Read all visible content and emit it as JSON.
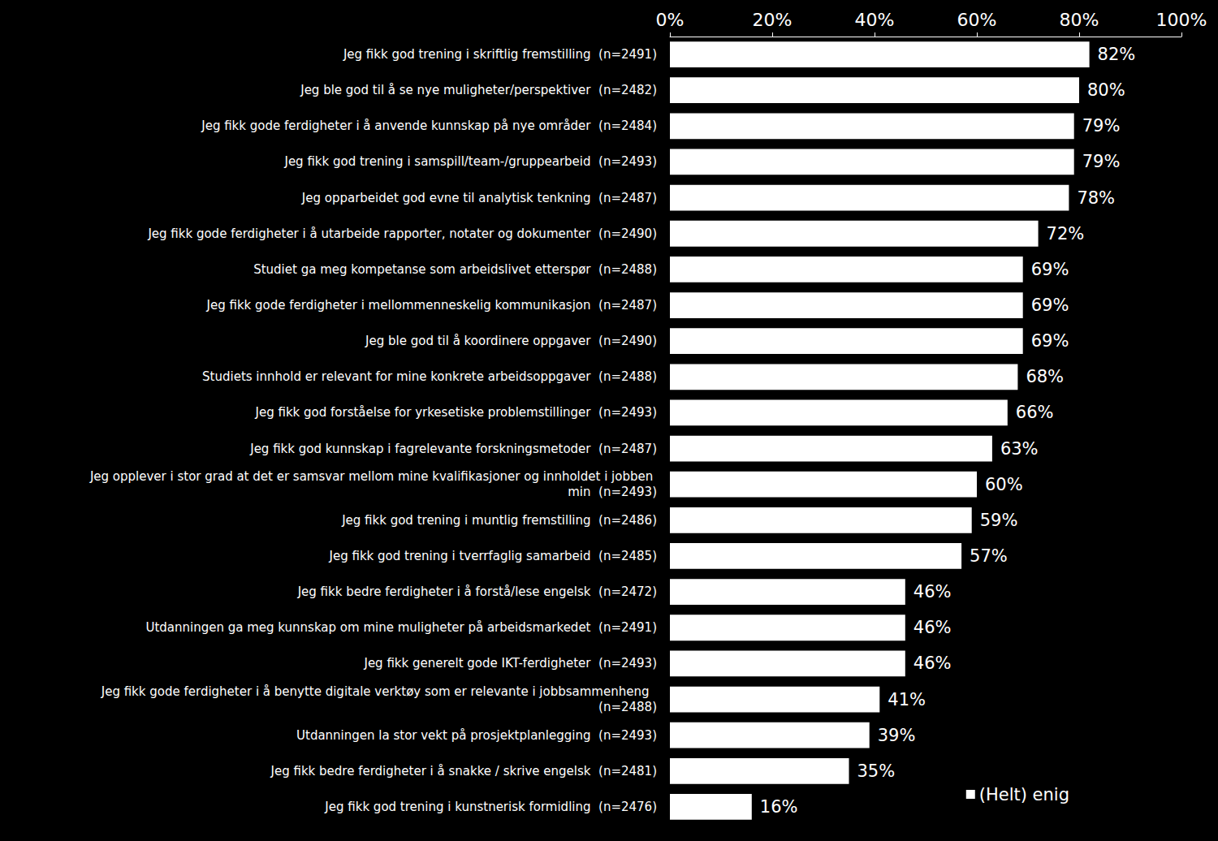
{
  "chart_data": {
    "type": "bar",
    "orientation": "horizontal",
    "categories": [
      "Jeg fikk god trening i skriftlig fremstilling  (n=2491)",
      "Jeg ble god til å se nye muligheter/perspektiver  (n=2482)",
      "Jeg fikk gode ferdigheter i å anvende kunnskap på nye områder  (n=2484)",
      "Jeg fikk god trening i samspill/team-/gruppearbeid  (n=2493)",
      "Jeg opparbeidet god evne til analytisk tenkning  (n=2487)",
      "Jeg fikk gode ferdigheter i å utarbeide rapporter, notater og dokumenter  (n=2490)",
      "Studiet ga meg kompetanse som arbeidslivet etterspør  (n=2488)",
      "Jeg fikk gode ferdigheter i mellommenneskelig kommunikasjon  (n=2487)",
      "Jeg ble god til å koordinere oppgaver  (n=2490)",
      "Studiets innhold er relevant for mine konkrete arbeidsoppgaver  (n=2488)",
      "Jeg fikk god forståelse for yrkesetiske problemstillinger  (n=2493)",
      "Jeg fikk god kunnskap i fagrelevante forskningsmetoder  (n=2487)",
      "Jeg opplever i stor grad at det er samsvar mellom mine kvalifikasjoner og innholdet i jobben min  (n=2493)",
      "Jeg fikk god trening i muntlig fremstilling  (n=2486)",
      "Jeg fikk god trening i tverrfaglig samarbeid  (n=2485)",
      "Jeg fikk bedre ferdigheter i å forstå/lese engelsk  (n=2472)",
      "Utdanningen ga meg kunnskap om mine muligheter på arbeidsmarkedet  (n=2491)",
      "Jeg fikk generelt gode IKT-ferdigheter  (n=2493)",
      "Jeg fikk gode ferdigheter i å benytte digitale verktøy som er relevante i jobbsammenheng  (n=2488)",
      "Utdanningen la stor vekt på prosjektplanlegging  (n=2493)",
      "Jeg fikk bedre ferdigheter i å snakke / skrive engelsk  (n=2481)",
      "Jeg fikk god trening i kunstnerisk formidling  (n=2476)"
    ],
    "series": [
      {
        "name": "(Helt) enig",
        "color": "#ffffff",
        "values": [
          82,
          80,
          79,
          79,
          78,
          72,
          69,
          69,
          69,
          68,
          66,
          63,
          60,
          59,
          57,
          46,
          46,
          46,
          41,
          39,
          35,
          16
        ],
        "value_labels": [
          "82%",
          "80%",
          "79%",
          "79%",
          "78%",
          "72%",
          "69%",
          "69%",
          "69%",
          "68%",
          "66%",
          "63%",
          "60%",
          "59%",
          "57%",
          "46%",
          "46%",
          "46%",
          "41%",
          "39%",
          "35%",
          "16%"
        ]
      }
    ],
    "xlim": [
      0,
      100
    ],
    "xticks": [
      {
        "value": 0,
        "label": "0%"
      },
      {
        "value": 20,
        "label": "20%"
      },
      {
        "value": 40,
        "label": "40%"
      },
      {
        "value": 60,
        "label": "60%"
      },
      {
        "value": 80,
        "label": "80%"
      },
      {
        "value": 100,
        "label": "100%"
      }
    ],
    "grid": false,
    "data_labels": true,
    "legend": "lower right"
  }
}
